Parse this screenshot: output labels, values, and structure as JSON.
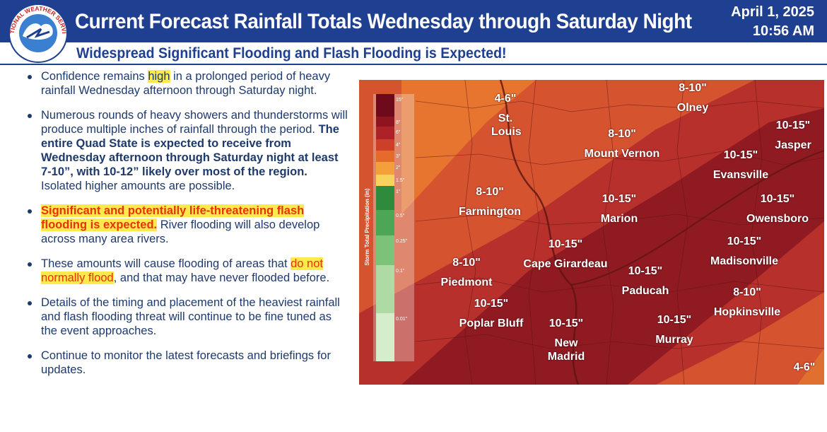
{
  "header": {
    "logo_text": "NATIONAL WEATHER SERVICE",
    "title": "Current Forecast Rainfall Totals Wednesday through Saturday Night",
    "subtitle": "Widespread Significant Flooding and Flash Flooding is Expected!",
    "date": "April 1, 2025",
    "time": "10:56 AM"
  },
  "bullets": [
    [
      {
        "text": "Confidence remains "
      },
      {
        "text": "high",
        "highlight": "#ffe94d"
      },
      {
        "text": " in a prolonged period of heavy rainfall Wednesday afternoon through Saturday night."
      }
    ],
    [
      {
        "text": "Numerous rounds of heavy showers and thunderstorms will produce multiple inches of rainfall through the period. "
      },
      {
        "text": "The entire Quad State is expected to receive from Wednesday afternoon through Saturday night at least 7-10”, with 10-12” likely over most of the region.",
        "bold": true
      },
      {
        "text": " Isolated higher amounts are possible."
      }
    ],
    [
      {
        "text": "Significant and potentially life-threatening flash flooding is expected.",
        "bold": true,
        "highlight": "#ffe94d",
        "color": "#e8320a"
      },
      {
        "text": " River flooding will also develop across many area rivers."
      }
    ],
    [
      {
        "text": "These amounts will cause flooding of areas that "
      },
      {
        "text": "do not normally flood",
        "highlight": "#ffe94d",
        "color": "#e8320a"
      },
      {
        "text": ", and that may have never flooded before."
      }
    ],
    [
      {
        "text": "Details of the timing and placement of the heaviest rainfall and flash flooding threat will continue to be fine tuned as the event approaches."
      }
    ],
    [
      {
        "text": "Continue to monitor the latest forecasts and briefings for updates."
      }
    ]
  ],
  "map": {
    "legend_title": "Storm Total Precipitation (in)",
    "legend": [
      {
        "label": "15\"",
        "color": "#6e0a1a"
      },
      {
        "label": "8\"",
        "color": "#8e1420"
      },
      {
        "label": "6\"",
        "color": "#ad2227"
      },
      {
        "label": "4\"",
        "color": "#cc402a"
      },
      {
        "label": "3\"",
        "color": "#e66a2c"
      },
      {
        "label": "2\"",
        "color": "#f3a03a"
      },
      {
        "label": "1.5\"",
        "color": "#f7d35e"
      },
      {
        "label": "1\"",
        "color": "#2e8a3c"
      },
      {
        "label": "0.5\"",
        "color": "#4da655"
      },
      {
        "label": "0.25\"",
        "color": "#7cc279"
      },
      {
        "label": "0.1\"",
        "color": "#aedaa4"
      },
      {
        "label": "0.01\"",
        "color": "#d6edcc"
      }
    ],
    "labels": [
      {
        "amount": "4-6\"",
        "city": "St. Louis"
      },
      {
        "amount": "8-10\"",
        "city": "Olney"
      },
      {
        "amount": "8-10\"",
        "city": "Mount Vernon"
      },
      {
        "amount": "10-15\"",
        "city": "Jasper"
      },
      {
        "amount": "10-15\"",
        "city": "Evansville"
      },
      {
        "amount": "8-10\"",
        "city": "Farmington"
      },
      {
        "amount": "10-15\"",
        "city": "Owensboro"
      },
      {
        "amount": "10-15\"",
        "city": "Marion"
      },
      {
        "amount": "10-15\"",
        "city": "Cape Girardeau"
      },
      {
        "amount": "10-15\"",
        "city": "Madisonville"
      },
      {
        "amount": "8-10\"",
        "city": "Piedmont"
      },
      {
        "amount": "10-15\"",
        "city": "Paducah"
      },
      {
        "amount": "10-15\"",
        "city": "Poplar Bluff"
      },
      {
        "amount": "10-15\"",
        "city": "New Madrid"
      },
      {
        "amount": "8-10\"",
        "city": "Hopkinsville"
      },
      {
        "amount": "10-15\"",
        "city": "Murray"
      },
      {
        "amount": "4-6\""
      }
    ]
  }
}
